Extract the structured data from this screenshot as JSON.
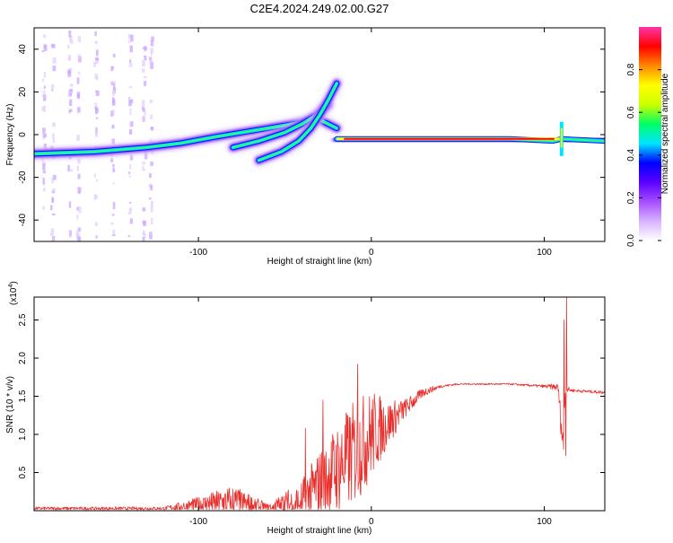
{
  "title": "C2E4.2024.249.02.00.G27",
  "chart_data": [
    {
      "type": "heatmap",
      "xlabel": "Height of straight line (km)",
      "ylabel": "Frequency (Hz)",
      "xlim": [
        -195,
        135
      ],
      "ylim": [
        -50,
        50
      ],
      "xticks": [
        -100,
        0,
        100
      ],
      "yticks": [
        -40,
        -20,
        0,
        20,
        40
      ],
      "colorbar": {
        "label": "Normalized spectral amplitude",
        "range": [
          0,
          1
        ],
        "ticks": [
          0.0,
          0.2,
          0.4,
          0.6,
          0.8
        ],
        "tick_labels": [
          "0.0",
          "0.2",
          "0.4",
          "0.6",
          "0.8"
        ],
        "colors": [
          "#ffffff",
          "#d6b3ff",
          "#a64dff",
          "#5a00ff",
          "#0000ff",
          "#00e5ff",
          "#00ff66",
          "#ccff00",
          "#ffff00",
          "#ff8800",
          "#ff0000",
          "#ff33aa"
        ]
      },
      "ridges": [
        {
          "x": [
            -195,
            -160,
            -130,
            -110,
            -90,
            -75,
            -60,
            -45,
            -30,
            -20
          ],
          "y": [
            -9,
            -8,
            -6,
            -4,
            -1,
            1,
            3,
            5,
            7,
            3
          ]
        },
        {
          "x": [
            -80,
            -65,
            -50,
            -40,
            -32,
            -25
          ],
          "y": [
            -6,
            -3,
            1,
            5,
            9,
            14
          ]
        },
        {
          "x": [
            -65,
            -52,
            -42,
            -35,
            -30,
            -25,
            -20
          ],
          "y": [
            -12,
            -8,
            -3,
            3,
            9,
            16,
            24
          ]
        },
        {
          "x": [
            -20,
            0,
            40,
            80,
            105,
            110,
            135
          ],
          "y": [
            -2,
            -2,
            -2,
            -2,
            -3,
            -2,
            -3
          ]
        }
      ],
      "hot_band": {
        "x": [
          -20,
          110
        ],
        "y": -2
      },
      "vertical_streaks_x": [
        -190,
        -185,
        -175,
        -170,
        -160,
        -150,
        -140,
        -132,
        -128
      ]
    },
    {
      "type": "line",
      "xlabel": "Height of straight line (km)",
      "ylabel": "SNR (10 * v/v)",
      "exponent_label": "(x10",
      "exponent_power": "4",
      "exponent_close": ")",
      "xlim": [
        -195,
        135
      ],
      "ylim": [
        0.0,
        2.8
      ],
      "xticks": [
        -100,
        0,
        100
      ],
      "yticks": [
        0.5,
        1.0,
        1.5,
        2.0,
        2.5
      ],
      "ytick_labels": [
        "0.5",
        "1.0",
        "1.5",
        "2.0",
        "2.5"
      ],
      "color": "#e8312e",
      "envelope": {
        "x": [
          -195,
          -120,
          -100,
          -80,
          -60,
          -40,
          -30,
          -20,
          -10,
          0,
          10,
          20,
          30,
          40,
          50,
          80,
          100,
          108,
          111,
          112,
          113,
          115,
          120,
          135
        ],
        "base": [
          0.03,
          0.03,
          0.08,
          0.12,
          0.04,
          0.12,
          0.35,
          0.55,
          0.75,
          1.0,
          1.15,
          1.35,
          1.55,
          1.63,
          1.66,
          1.66,
          1.63,
          1.62,
          0.8,
          1.6,
          1.6,
          1.58,
          1.57,
          1.55
        ],
        "noise": [
          0.02,
          0.02,
          0.1,
          0.22,
          0.05,
          0.3,
          0.45,
          0.6,
          0.7,
          0.6,
          0.3,
          0.12,
          0.06,
          0.02,
          0.01,
          0.01,
          0.02,
          0.05,
          0.3,
          0.1,
          0.05,
          0.02,
          0.02,
          0.02
        ]
      },
      "spikes": [
        {
          "x": 111.5,
          "y": 2.5
        },
        {
          "x": 112.3,
          "y": 0.72
        },
        {
          "x": 113.0,
          "y": 2.8
        },
        {
          "x": -8,
          "y": 1.92
        },
        {
          "x": -28,
          "y": 1.45
        },
        {
          "x": -38,
          "y": 1.08
        }
      ]
    }
  ]
}
